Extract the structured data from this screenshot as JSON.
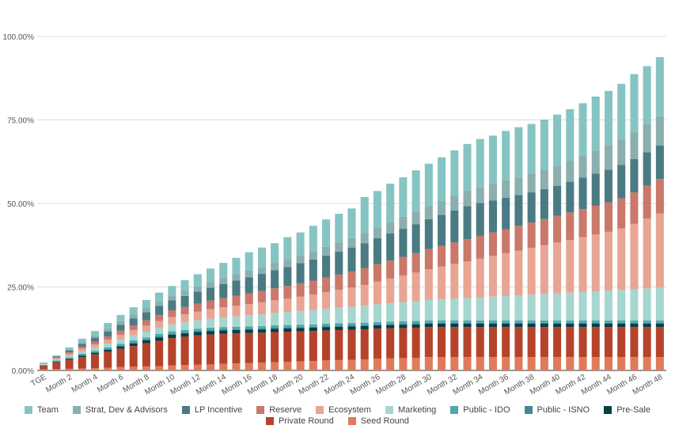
{
  "chart_data": {
    "type": "stacked-bar",
    "y_tick_labels": [
      "0.00%",
      "25.00%",
      "50.00%",
      "75.00%",
      "100.00%"
    ],
    "ylim": [
      0,
      100
    ],
    "grid": true,
    "legend_position": "bottom",
    "categories": [
      "TGE",
      "Month 1",
      "Month 2",
      "Month 3",
      "Month 4",
      "Month 5",
      "Month 6",
      "Month 7",
      "Month 8",
      "Month 9",
      "Month 10",
      "Month 11",
      "Month 12",
      "Month 13",
      "Month 14",
      "Month 15",
      "Month 16",
      "Month 17",
      "Month 18",
      "Month 19",
      "Month 20",
      "Month 21",
      "Month 22",
      "Month 23",
      "Month 24",
      "Month 25",
      "Month 26",
      "Month 27",
      "Month 28",
      "Month 29",
      "Month 30",
      "Month 31",
      "Month 32",
      "Month 33",
      "Month 34",
      "Month 35",
      "Month 36",
      "Month 37",
      "Month 38",
      "Month 39",
      "Month 40",
      "Month 41",
      "Month 42",
      "Month 43",
      "Month 44",
      "Month 45",
      "Month 46",
      "Month 47",
      "Month 48"
    ],
    "x_tick_labels": [
      "TGE",
      "Month 2",
      "Month 4",
      "Month 6",
      "Month 8",
      "Month 10",
      "Month 12",
      "Month 14",
      "Month 16",
      "Month 18",
      "Month 20",
      "Month 22",
      "Month 24",
      "Month 26",
      "Month 28",
      "Month 30",
      "Month 32",
      "Month 34",
      "Month 36",
      "Month 38",
      "Month 40",
      "Month 42",
      "Month 44",
      "Month 46",
      "Month 48"
    ],
    "series": [
      {
        "name": "Seed Round",
        "color": "#E07B5A",
        "values": [
          0.3,
          0.4,
          0.5,
          0.6,
          0.7,
          0.8,
          1.0,
          1.1,
          1.2,
          1.3,
          1.5,
          1.6,
          1.7,
          1.8,
          2.0,
          2.1,
          2.2,
          2.3,
          2.5,
          2.6,
          2.7,
          2.8,
          3.0,
          3.1,
          3.2,
          3.3,
          3.5,
          3.6,
          3.7,
          3.8,
          4.0,
          4.0,
          4.0,
          4.0,
          4.0,
          4.0,
          4.0,
          4.0,
          4.0,
          4.0,
          4.0,
          4.0,
          4.0,
          4.0,
          4.0,
          4.0,
          4.0,
          4.0,
          4.0
        ]
      },
      {
        "name": "Private Round",
        "color": "#B5432B",
        "values": [
          1.0,
          2.0,
          2.7,
          3.4,
          4.1,
          4.8,
          5.5,
          6.2,
          6.9,
          7.6,
          8.2,
          8.5,
          8.8,
          9.0,
          9.0,
          9.0,
          9.0,
          9.0,
          9.0,
          9.0,
          9.0,
          9.0,
          9.0,
          9.0,
          9.0,
          9.0,
          9.0,
          9.0,
          9.0,
          9.0,
          9.0,
          9.0,
          9.0,
          9.0,
          9.0,
          9.0,
          9.0,
          9.0,
          9.0,
          9.0,
          9.0,
          9.0,
          9.0,
          9.0,
          9.0,
          9.0,
          9.0,
          9.0,
          9.0
        ]
      },
      {
        "name": "Pre-Sale",
        "color": "#063F46",
        "values": [
          0.1,
          0.2,
          0.3,
          0.4,
          0.5,
          0.6,
          0.7,
          0.8,
          0.9,
          1.0,
          1.0,
          1.0,
          1.0,
          1.0,
          1.0,
          1.0,
          1.0,
          1.0,
          1.0,
          1.0,
          1.0,
          1.0,
          1.0,
          1.0,
          1.0,
          1.0,
          1.0,
          1.0,
          1.0,
          1.0,
          1.0,
          1.0,
          1.0,
          1.0,
          1.0,
          1.0,
          1.0,
          1.0,
          1.0,
          1.0,
          1.0,
          1.0,
          1.0,
          1.0,
          1.0,
          1.0,
          1.0,
          1.0,
          1.0
        ]
      },
      {
        "name": "Public - ISNO",
        "color": "#3F8A92",
        "values": [
          0.1,
          0.1,
          0.1,
          0.2,
          0.2,
          0.2,
          0.3,
          0.3,
          0.3,
          0.3,
          0.3,
          0.3,
          0.3,
          0.3,
          0.3,
          0.3,
          0.3,
          0.3,
          0.3,
          0.3,
          0.3,
          0.3,
          0.3,
          0.3,
          0.3,
          0.3,
          0.3,
          0.3,
          0.3,
          0.3,
          0.3,
          0.3,
          0.3,
          0.3,
          0.3,
          0.3,
          0.3,
          0.3,
          0.3,
          0.3,
          0.3,
          0.3,
          0.3,
          0.3,
          0.3,
          0.3,
          0.3,
          0.3,
          0.3
        ]
      },
      {
        "name": "Public - IDO",
        "color": "#4FA7B0",
        "values": [
          0.2,
          0.3,
          0.3,
          0.4,
          0.4,
          0.5,
          0.5,
          0.6,
          0.6,
          0.7,
          0.7,
          0.7,
          0.7,
          0.7,
          0.7,
          0.7,
          0.7,
          0.7,
          0.7,
          0.7,
          0.7,
          0.7,
          0.7,
          0.7,
          0.7,
          0.7,
          0.7,
          0.7,
          0.7,
          0.7,
          0.7,
          0.7,
          0.7,
          0.7,
          0.7,
          0.7,
          0.7,
          0.7,
          0.7,
          0.7,
          0.7,
          0.7,
          0.7,
          0.7,
          0.7,
          0.7,
          0.7,
          0.7,
          0.7
        ]
      },
      {
        "name": "Marketing",
        "color": "#A5D6CF",
        "values": [
          0.2,
          0.3,
          0.5,
          0.7,
          0.9,
          1.1,
          1.3,
          1.5,
          1.7,
          1.9,
          2.1,
          2.3,
          2.5,
          2.7,
          2.9,
          3.1,
          3.3,
          3.5,
          3.7,
          3.9,
          4.1,
          4.3,
          4.5,
          4.7,
          4.9,
          5.1,
          5.3,
          5.5,
          5.7,
          5.9,
          6.1,
          6.3,
          6.5,
          6.7,
          6.9,
          7.1,
          7.3,
          7.5,
          7.7,
          7.9,
          8.1,
          8.3,
          8.5,
          8.7,
          8.9,
          9.1,
          9.3,
          9.5,
          9.7
        ]
      },
      {
        "name": "Ecosystem",
        "color": "#E8A593",
        "values": [
          0.2,
          0.4,
          0.6,
          0.8,
          1.0,
          1.2,
          1.4,
          1.6,
          1.8,
          2.0,
          2.2,
          2.4,
          2.6,
          2.8,
          3.0,
          3.2,
          3.4,
          3.6,
          3.8,
          4.0,
          4.3,
          4.6,
          4.9,
          5.3,
          5.7,
          6.2,
          6.8,
          7.4,
          8.0,
          8.6,
          9.2,
          9.8,
          10.4,
          11.0,
          11.6,
          12.2,
          12.8,
          13.4,
          14.0,
          14.6,
          15.2,
          15.8,
          16.4,
          17.0,
          17.6,
          18.4,
          19.6,
          21.0,
          22.3
        ]
      },
      {
        "name": "Reserve",
        "color": "#C9786A",
        "values": [
          0.1,
          0.2,
          0.4,
          0.6,
          0.8,
          1.0,
          1.2,
          1.4,
          1.6,
          1.8,
          2.0,
          2.2,
          2.4,
          2.6,
          2.8,
          3.0,
          3.2,
          3.4,
          3.6,
          3.8,
          4.0,
          4.2,
          4.4,
          4.6,
          4.8,
          5.0,
          5.2,
          5.4,
          5.6,
          5.8,
          6.0,
          6.2,
          6.4,
          6.6,
          6.8,
          7.0,
          7.2,
          7.4,
          7.6,
          7.8,
          8.0,
          8.2,
          8.4,
          8.6,
          8.8,
          9.0,
          9.4,
          9.8,
          10.3
        ]
      },
      {
        "name": "LP Incentive",
        "color": "#4A7B83",
        "values": [
          0.1,
          0.3,
          0.6,
          0.9,
          1.2,
          1.5,
          1.8,
          2.1,
          2.4,
          2.7,
          3.0,
          3.3,
          3.6,
          3.9,
          4.2,
          4.5,
          4.8,
          5.1,
          5.4,
          5.7,
          6.0,
          6.3,
          6.6,
          6.9,
          7.2,
          7.5,
          7.8,
          8.1,
          8.4,
          8.7,
          9.0,
          9.3,
          9.6,
          9.9,
          9.8,
          9.6,
          9.4,
          9.2,
          9.0,
          9.0,
          9.0,
          9.2,
          9.4,
          9.6,
          9.8,
          10.0,
          10.0,
          10.0,
          10.0
        ]
      },
      {
        "name": "Strat, Dev & Advisors",
        "color": "#8AAFAE",
        "values": [
          0.0,
          0.1,
          0.3,
          0.5,
          0.7,
          0.9,
          1.0,
          1.1,
          1.2,
          1.3,
          1.4,
          1.5,
          1.6,
          1.7,
          1.8,
          1.9,
          2.0,
          2.1,
          2.2,
          2.3,
          2.4,
          2.5,
          2.6,
          2.7,
          2.8,
          3.0,
          3.2,
          3.4,
          3.6,
          3.8,
          4.0,
          4.2,
          4.4,
          4.6,
          4.8,
          5.0,
          5.2,
          5.4,
          5.6,
          5.8,
          6.0,
          6.3,
          6.6,
          6.9,
          7.2,
          7.6,
          8.0,
          8.4,
          8.8
        ]
      },
      {
        "name": "Team",
        "color": "#86C4C4",
        "values": [
          0.0,
          0.2,
          0.6,
          1.0,
          1.3,
          1.6,
          1.9,
          2.2,
          2.5,
          2.7,
          2.9,
          3.2,
          3.6,
          4.0,
          4.5,
          4.9,
          5.5,
          5.8,
          5.9,
          6.6,
          6.8,
          7.6,
          8.2,
          8.6,
          8.9,
          10.8,
          10.9,
          11.5,
          11.8,
          12.3,
          12.6,
          13.0,
          13.6,
          14.0,
          14.4,
          14.4,
          14.8,
          14.9,
          14.9,
          15.0,
          15.3,
          15.4,
          15.7,
          16.2,
          16.4,
          16.7,
          17.4,
          17.4,
          17.7
        ]
      }
    ],
    "legend": [
      "Team",
      "Strat, Dev & Advisors",
      "LP Incentive",
      "Reserve",
      "Ecosystem",
      "Marketing",
      "Public - IDO",
      "Public - ISNO",
      "Pre-Sale",
      "Private Round",
      "Seed Round"
    ]
  }
}
